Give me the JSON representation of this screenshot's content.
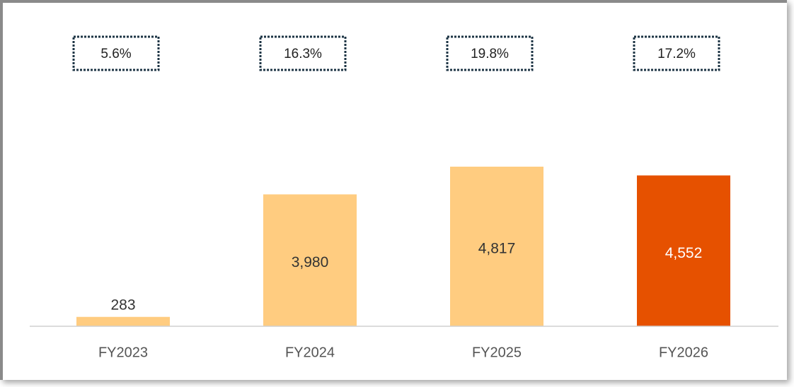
{
  "chart_data": {
    "type": "bar",
    "categories": [
      "FY2023",
      "FY2024",
      "FY2025",
      "FY2026"
    ],
    "values": [
      283,
      3980,
      4817,
      4552
    ],
    "value_labels": [
      "283",
      "3,980",
      "4,817",
      "4,552"
    ],
    "colors": [
      "#ffcc80",
      "#ffcc80",
      "#ffcc80",
      "#e65100"
    ],
    "annotations": [
      {
        "value": 5.6,
        "label": "5.6%"
      },
      {
        "value": 16.3,
        "label": "16.3%"
      },
      {
        "value": 19.8,
        "label": "19.8%"
      },
      {
        "value": 17.2,
        "label": "17.2%"
      }
    ]
  }
}
